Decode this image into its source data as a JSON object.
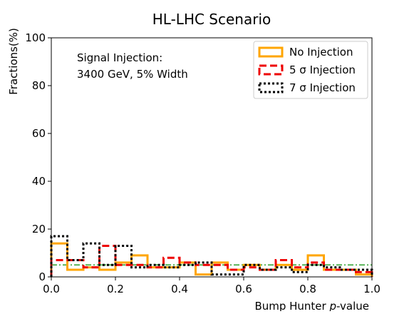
{
  "chart_data": {
    "type": "histogram",
    "title": "HL-LHC Scenario",
    "xlabel_prefix": "Bump Hunter ",
    "xlabel_italic": "p",
    "xlabel_suffix": "-value",
    "ylabel": "Fractions(%)",
    "xlim": [
      0,
      1
    ],
    "ylim": [
      0,
      100
    ],
    "xticks": [
      "0.0",
      "0.2",
      "0.4",
      "0.6",
      "0.8",
      "1.0"
    ],
    "yticks": [
      "0",
      "20",
      "40",
      "60",
      "80",
      "100"
    ],
    "bin_edges": [
      0,
      0.05,
      0.1,
      0.15,
      0.2,
      0.25,
      0.3,
      0.35,
      0.4,
      0.45,
      0.5,
      0.55,
      0.6,
      0.65,
      0.7,
      0.75,
      0.8,
      0.85,
      0.9,
      0.95,
      1.0
    ],
    "annotation": [
      "Signal Injection:",
      "3400 GeV, 5% Width"
    ],
    "legend_position": "top-right",
    "reference_line": {
      "y": 5,
      "color": "#2ca02c",
      "style": "dash-dot"
    },
    "series": [
      {
        "name": "No Injection",
        "color": "#ffa500",
        "style": "solid",
        "values": [
          14,
          3,
          4,
          3,
          6,
          9,
          4,
          4,
          6,
          1,
          6,
          3,
          5,
          3,
          5,
          3,
          9,
          3,
          3,
          1
        ]
      },
      {
        "name": "5 σ Injection",
        "color": "#ee0000",
        "style": "dashed",
        "values": [
          7,
          7,
          4,
          13,
          5,
          5,
          4,
          8,
          6,
          5,
          5,
          3,
          4,
          3,
          7,
          4,
          6,
          3,
          3,
          2
        ]
      },
      {
        "name": "7 σ Injection",
        "color": "#000000",
        "style": "dotted",
        "values": [
          17,
          7,
          14,
          5,
          13,
          4,
          5,
          4,
          5,
          6,
          1,
          1,
          5,
          3,
          4,
          2,
          5,
          4,
          3,
          3
        ]
      }
    ]
  }
}
